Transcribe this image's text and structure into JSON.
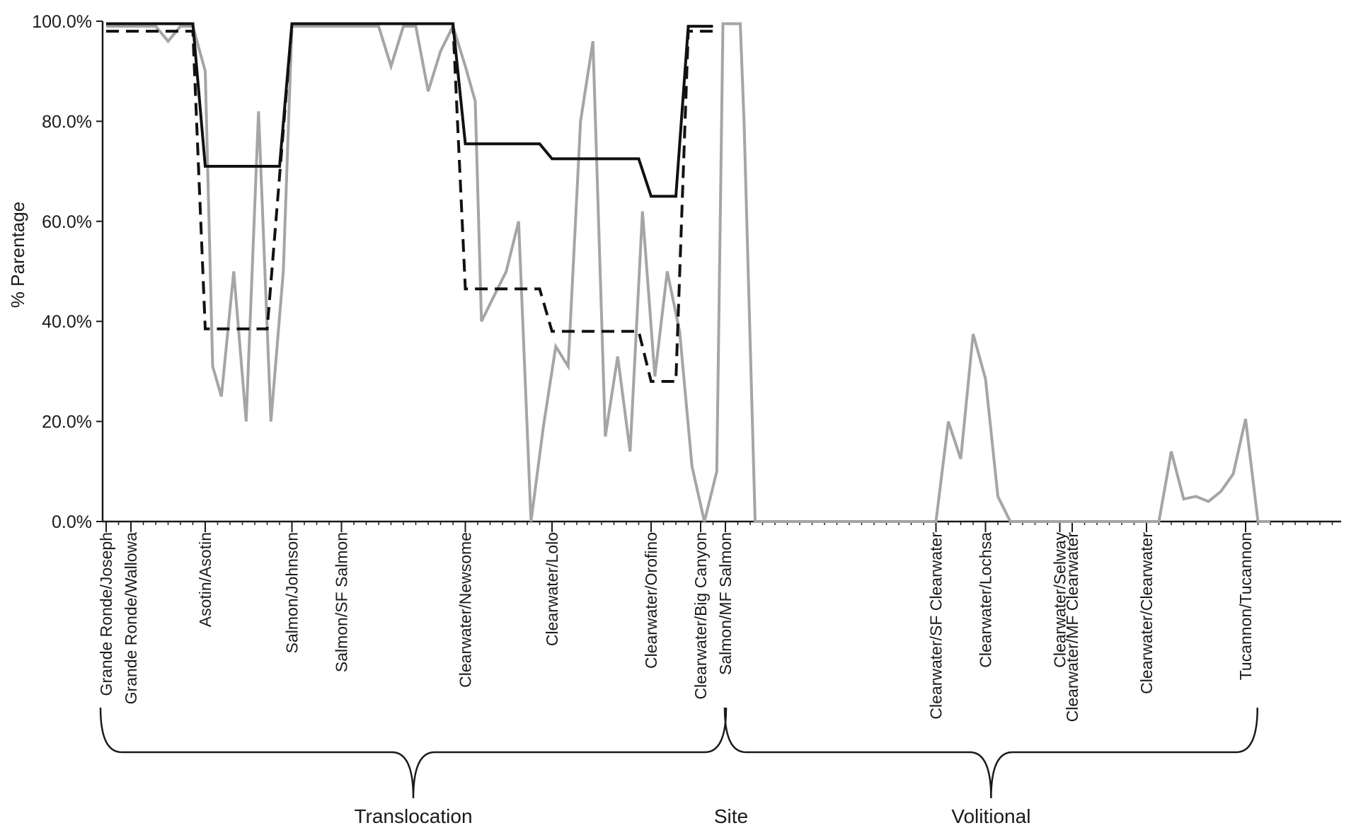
{
  "chart_data": {
    "type": "line",
    "title": "",
    "xlabel": "",
    "ylabel": "% Parentage",
    "ylim": [
      0,
      100
    ],
    "yticks": [
      "0.0%",
      "20.0%",
      "40.0%",
      "60.0%",
      "80.0%",
      "100.0%"
    ],
    "ytick_values": [
      0,
      20,
      40,
      60,
      80,
      100
    ],
    "grid": false,
    "legend": "none",
    "x_count": 100,
    "categories": [
      {
        "index": 0,
        "label": "Grande Ronde/Joseph"
      },
      {
        "index": 2,
        "label": "Grande Ronde/Wallowa"
      },
      {
        "index": 8,
        "label": "Asotin/Asotin"
      },
      {
        "index": 15,
        "label": "Salmon/Johnson"
      },
      {
        "index": 19,
        "label": "Salmon/SF Salmon"
      },
      {
        "index": 29,
        "label": "Clearwater/Newsome"
      },
      {
        "index": 36,
        "label": "Clearwater/Lolo"
      },
      {
        "index": 44,
        "label": "Clearwater/Orofino"
      },
      {
        "index": 48,
        "label": "Clearwater/Big Canyon"
      },
      {
        "index": 50,
        "label": "Salmon/MF Salmon"
      },
      {
        "index": 67,
        "label": "Clearwater/SF Clearwater"
      },
      {
        "index": 71,
        "label": "Clearwater/Lochsa"
      },
      {
        "index": 77,
        "label": "Clearwater/Selway"
      },
      {
        "index": 78,
        "label": "Clearwater/MF Clearwater"
      },
      {
        "index": 84,
        "label": "Clearwater/Clearwater"
      },
      {
        "index": 92,
        "label": "Tucannon/Tucannon"
      }
    ],
    "groups": [
      {
        "label": "Translocation",
        "start": 0,
        "end": 49.6
      },
      {
        "label": "Site",
        "start": 0,
        "end": 0,
        "label_only": true
      },
      {
        "label": "Volitional",
        "start": 50.4,
        "end": 92.5
      }
    ],
    "series": [
      {
        "style": "solid-black",
        "color": "#111111",
        "points": [
          [
            0,
            99.5
          ],
          [
            7,
            99.5
          ],
          [
            8,
            71
          ],
          [
            14,
            71
          ],
          [
            15,
            99.5
          ],
          [
            28,
            99.5
          ],
          [
            29,
            75.5
          ],
          [
            35,
            75.5
          ],
          [
            36,
            72.5
          ],
          [
            43,
            72.5
          ],
          [
            44,
            65
          ],
          [
            46,
            65
          ],
          [
            47,
            99
          ],
          [
            49,
            99
          ]
        ]
      },
      {
        "style": "dashed-black",
        "color": "#111111",
        "points": [
          [
            0,
            98
          ],
          [
            7,
            98
          ],
          [
            8,
            38.5
          ],
          [
            13,
            38.5
          ],
          [
            15,
            99.5
          ],
          [
            28,
            99.5
          ],
          [
            29,
            46.5
          ],
          [
            35,
            46.5
          ],
          [
            36,
            38
          ],
          [
            43,
            38
          ],
          [
            44,
            28
          ],
          [
            46,
            28
          ],
          [
            47,
            98
          ],
          [
            49,
            98
          ]
        ]
      },
      {
        "style": "solid-gray",
        "color": "#a5a5a5",
        "points": [
          [
            0,
            99
          ],
          [
            1,
            99
          ],
          [
            2,
            99
          ],
          [
            3,
            99
          ],
          [
            4,
            99
          ],
          [
            5,
            96
          ],
          [
            6,
            99
          ],
          [
            7,
            99
          ],
          [
            8,
            90
          ],
          [
            8.6,
            31
          ],
          [
            9.3,
            25
          ],
          [
            10.3,
            50
          ],
          [
            11.3,
            20
          ],
          [
            12.3,
            82
          ],
          [
            13.3,
            20
          ],
          [
            14.3,
            50
          ],
          [
            15,
            99
          ],
          [
            16,
            99
          ],
          [
            17,
            99
          ],
          [
            18,
            99
          ],
          [
            19,
            99
          ],
          [
            20,
            99
          ],
          [
            21,
            99
          ],
          [
            22,
            99
          ],
          [
            23,
            91
          ],
          [
            24,
            99
          ],
          [
            25,
            99
          ],
          [
            26,
            86
          ],
          [
            27,
            94
          ],
          [
            28,
            99
          ],
          [
            29,
            91
          ],
          [
            29.8,
            84
          ],
          [
            30.3,
            40
          ],
          [
            31.3,
            45
          ],
          [
            32.3,
            50
          ],
          [
            33.3,
            60
          ],
          [
            34.3,
            0
          ],
          [
            35.3,
            19
          ],
          [
            36.3,
            35
          ],
          [
            37.3,
            31
          ],
          [
            38.3,
            80
          ],
          [
            39.3,
            96
          ],
          [
            40.3,
            17
          ],
          [
            41.3,
            33
          ],
          [
            42.3,
            14
          ],
          [
            43.3,
            62
          ],
          [
            44.3,
            29
          ],
          [
            45.3,
            50
          ],
          [
            46.3,
            38
          ],
          [
            47.3,
            11
          ],
          [
            48.3,
            0
          ],
          [
            49.3,
            10
          ],
          [
            49.8,
            99.5
          ],
          [
            51.2,
            99.5
          ],
          [
            51.5,
            80
          ],
          [
            52.4,
            0
          ],
          [
            53,
            0
          ],
          [
            54,
            0
          ],
          [
            55,
            0
          ],
          [
            56,
            0
          ],
          [
            57,
            0
          ],
          [
            58,
            0
          ],
          [
            59,
            0
          ],
          [
            60,
            0
          ],
          [
            61,
            0
          ],
          [
            62,
            0
          ],
          [
            63,
            0
          ],
          [
            64,
            0
          ],
          [
            65,
            0
          ],
          [
            66,
            0
          ],
          [
            67,
            0
          ],
          [
            68,
            20
          ],
          [
            69,
            12.5
          ],
          [
            70,
            37.5
          ],
          [
            71,
            28.5
          ],
          [
            72,
            5
          ],
          [
            73,
            0
          ],
          [
            74,
            0
          ],
          [
            75,
            0
          ],
          [
            76,
            0
          ],
          [
            77,
            0
          ],
          [
            78,
            0
          ],
          [
            79,
            0
          ],
          [
            80,
            0
          ],
          [
            81,
            0
          ],
          [
            82,
            0
          ],
          [
            83,
            0
          ],
          [
            84,
            0
          ],
          [
            85,
            0
          ],
          [
            86,
            14
          ],
          [
            87,
            4.5
          ],
          [
            88,
            5
          ],
          [
            89,
            4
          ],
          [
            90,
            6
          ],
          [
            91,
            9.5
          ],
          [
            92,
            20.5
          ],
          [
            93,
            0
          ],
          [
            94,
            0
          ]
        ]
      }
    ]
  }
}
